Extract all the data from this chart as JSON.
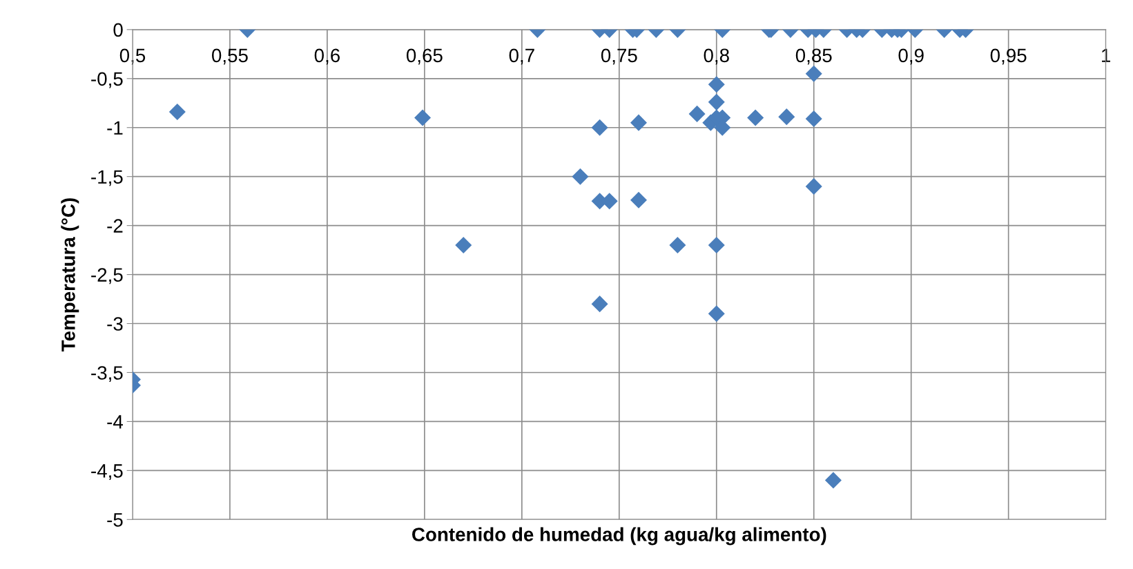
{
  "chart_data": {
    "type": "scatter",
    "xlabel": "Contenido de humedad (kg agua/kg alimento)",
    "ylabel": "Temperatura (°C)",
    "x": [
      0.559,
      0.708,
      0.74,
      0.745,
      0.757,
      0.759,
      0.769,
      0.78,
      0.803,
      0.827,
      0.828,
      0.838,
      0.847,
      0.851,
      0.855,
      0.867,
      0.872,
      0.875,
      0.885,
      0.89,
      0.893,
      0.895,
      0.902,
      0.917,
      0.925,
      0.928,
      0.523,
      0.649,
      0.8,
      0.8,
      0.85,
      0.79,
      0.797,
      0.8,
      0.803,
      0.803,
      0.82,
      0.836,
      0.85,
      0.74,
      0.76,
      0.73,
      0.74,
      0.745,
      0.76,
      0.85,
      0.67,
      0.78,
      0.8,
      0.74,
      0.8,
      0.5,
      0.5,
      0.86
    ],
    "values": [
      0,
      0,
      0,
      0,
      0,
      0,
      0,
      0,
      0,
      0,
      0,
      0,
      0,
      0,
      0,
      0,
      0,
      0,
      0,
      0,
      0,
      0,
      0,
      0,
      0,
      0,
      -0.84,
      -0.9,
      -0.56,
      -0.74,
      -0.45,
      -0.86,
      -0.95,
      -0.9,
      -0.9,
      -1.0,
      -0.9,
      -0.89,
      -0.91,
      -1.0,
      -0.95,
      -1.5,
      -1.75,
      -1.75,
      -1.74,
      -1.6,
      -2.2,
      -2.2,
      -2.2,
      -2.8,
      -2.9,
      -3.57,
      -3.63,
      -4.6
    ],
    "color": "#4a7ebb",
    "marker": "diamond",
    "grid": true,
    "xlim": [
      0.5,
      1.0
    ],
    "ylim": [
      -5,
      0
    ],
    "xticks": [
      {
        "value": 0.5,
        "label": "0,5"
      },
      {
        "value": 0.55,
        "label": "0,55"
      },
      {
        "value": 0.6,
        "label": "0,6"
      },
      {
        "value": 0.65,
        "label": "0,65"
      },
      {
        "value": 0.7,
        "label": "0,7"
      },
      {
        "value": 0.75,
        "label": "0,75"
      },
      {
        "value": 0.8,
        "label": "0,8"
      },
      {
        "value": 0.85,
        "label": "0,85"
      },
      {
        "value": 0.9,
        "label": "0,9"
      },
      {
        "value": 0.95,
        "label": "0,95"
      },
      {
        "value": 1,
        "label": "1"
      }
    ],
    "yticks": [
      0,
      {
        "value": -0.5,
        "label": "-0,5"
      },
      {
        "value": -1,
        "label": "-1"
      },
      {
        "value": -1.5,
        "label": "-1,5"
      },
      {
        "value": -2,
        "label": "-2"
      },
      {
        "value": -2.5,
        "label": "-2,5"
      },
      {
        "value": -3,
        "label": "-3"
      },
      {
        "value": -3.5,
        "label": "-3,5"
      },
      {
        "value": -4,
        "label": "-4"
      },
      {
        "value": -4.5,
        "label": "-4,5"
      },
      {
        "value": -5,
        "label": "-5"
      }
    ]
  }
}
